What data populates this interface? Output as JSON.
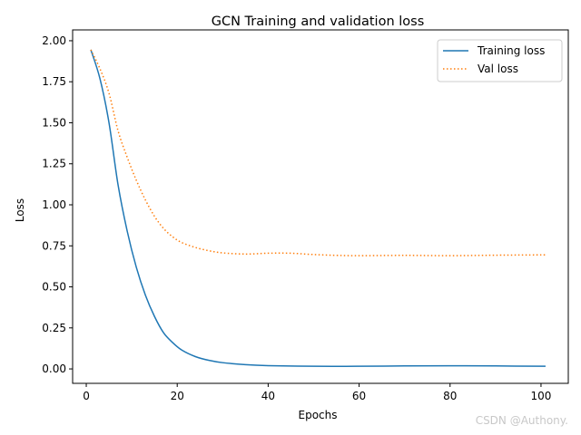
{
  "chart_data": {
    "type": "line",
    "title": "GCN Training and validation loss",
    "xlabel": "Epochs",
    "ylabel": "Loss",
    "xlim": [
      -3,
      106
    ],
    "ylim": [
      -0.088,
      2.066
    ],
    "xticks": [
      0,
      20,
      40,
      60,
      80,
      100
    ],
    "yticks": [
      "0.00",
      "0.25",
      "0.50",
      "0.75",
      "1.00",
      "1.25",
      "1.50",
      "1.75",
      "2.00"
    ],
    "grid": false,
    "legend_position": "top-right",
    "series": [
      {
        "name": "Training loss",
        "color": "#1f77b4",
        "style": "solid",
        "x": [
          1,
          3,
          5,
          7,
          9,
          11,
          13,
          15,
          17,
          19,
          21,
          24,
          27,
          30,
          35,
          40,
          50,
          60,
          70,
          80,
          90,
          101
        ],
        "y": [
          1.945,
          1.77,
          1.5,
          1.12,
          0.84,
          0.62,
          0.45,
          0.32,
          0.22,
          0.16,
          0.115,
          0.075,
          0.052,
          0.038,
          0.026,
          0.02,
          0.016,
          0.016,
          0.018,
          0.019,
          0.018,
          0.016
        ]
      },
      {
        "name": "Val loss",
        "color": "#ff7f0e",
        "style": "dotted",
        "x": [
          1,
          3,
          5,
          7,
          9,
          11,
          13,
          15,
          17,
          19,
          21,
          24,
          27,
          30,
          35,
          40,
          45,
          50,
          55,
          60,
          70,
          80,
          90,
          101
        ],
        "y": [
          1.945,
          1.83,
          1.68,
          1.45,
          1.29,
          1.15,
          1.03,
          0.93,
          0.856,
          0.805,
          0.77,
          0.74,
          0.72,
          0.707,
          0.7,
          0.705,
          0.705,
          0.697,
          0.692,
          0.69,
          0.692,
          0.69,
          0.693,
          0.695
        ]
      }
    ],
    "watermark": "CSDN @Authony."
  }
}
